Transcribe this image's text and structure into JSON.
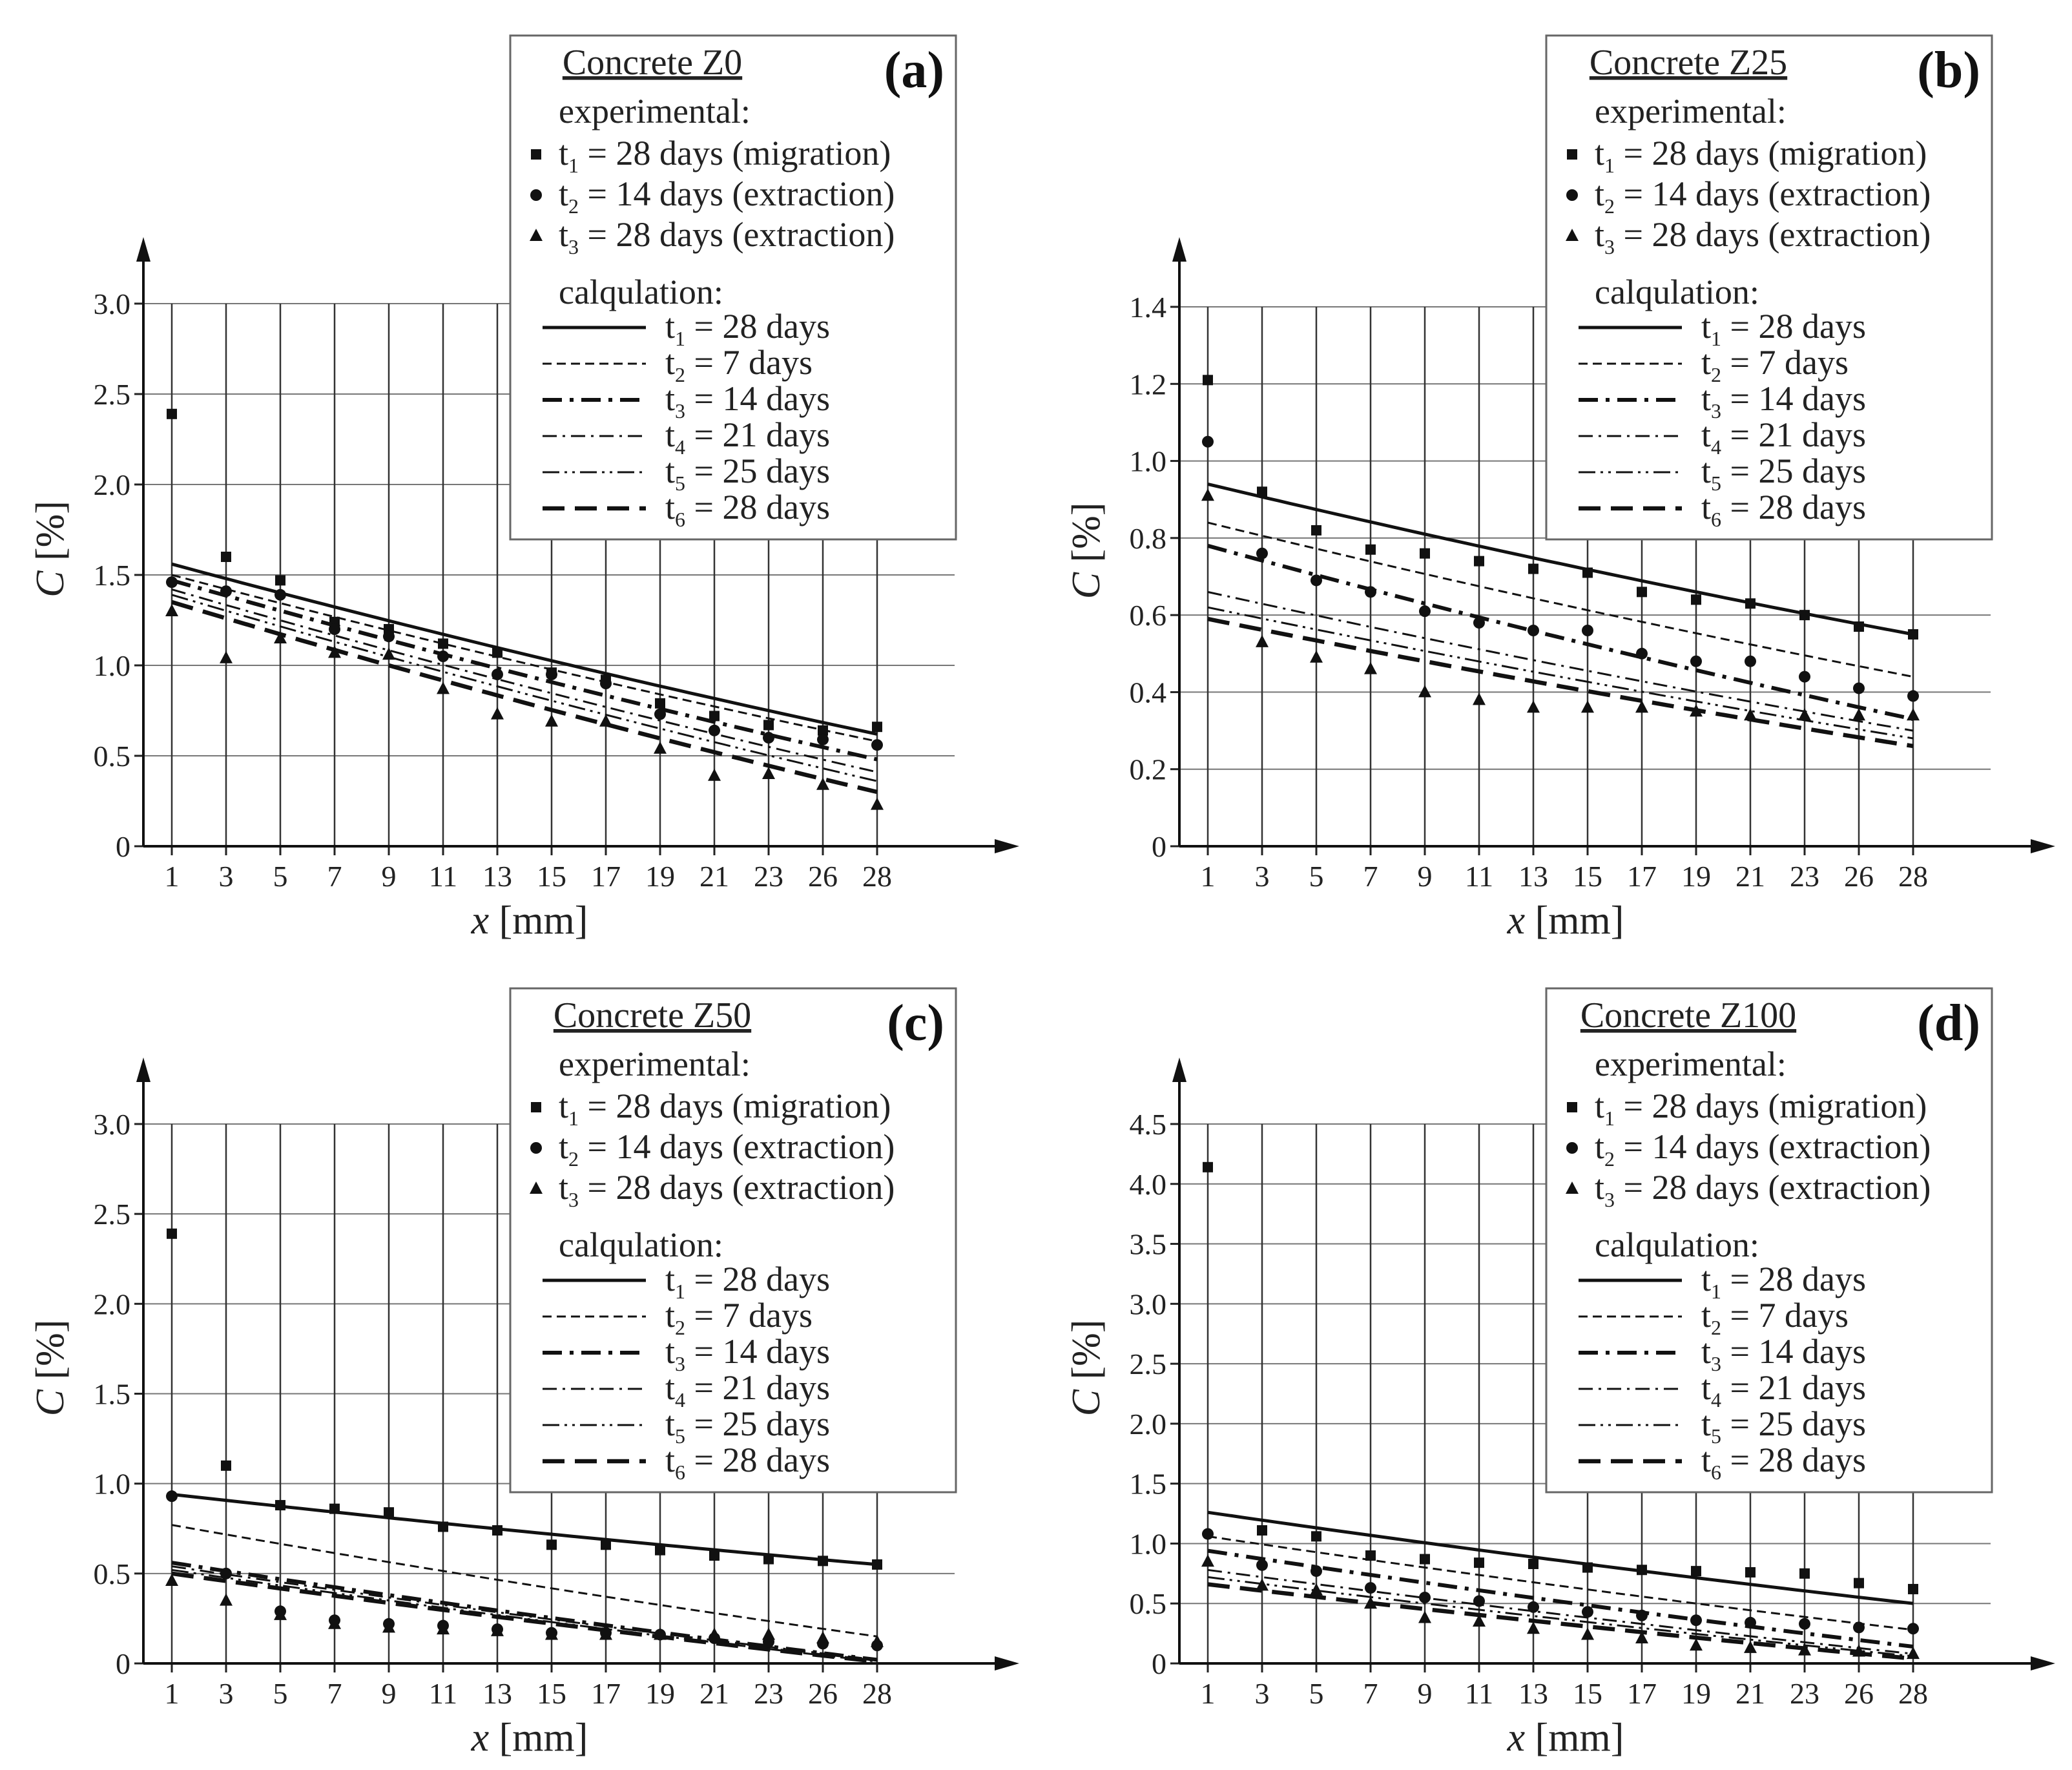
{
  "figure": {
    "legend_text": {
      "experimental": "experimental:",
      "calculation": "calqulation:",
      "exp_series": [
        {
          "sub": "1",
          "label": "= 28 days (migration)"
        },
        {
          "sub": "2",
          "label": "= 14 days (extraction)"
        },
        {
          "sub": "3",
          "label": "= 28 days (extraction)"
        }
      ],
      "calc_series": [
        {
          "sub": "1",
          "label": "= 28 days"
        },
        {
          "sub": "2",
          "label": "= 7 days"
        },
        {
          "sub": "3",
          "label": "= 14 days"
        },
        {
          "sub": "4",
          "label": "= 21 days"
        },
        {
          "sub": "5",
          "label": "= 25 days"
        },
        {
          "sub": "6",
          "label": "= 28 days"
        }
      ]
    }
  },
  "chart_data": [
    {
      "type": "scatter",
      "panel_label": "(a)",
      "legend_title": "Concrete Z0",
      "xlabel": "x [mm]",
      "ylabel": "C [%]",
      "x": [
        1,
        3,
        5,
        7,
        9,
        11,
        13,
        15,
        17,
        19,
        21,
        23,
        26,
        28
      ],
      "x_ticks": [
        "1",
        "3",
        "5",
        "7",
        "9",
        "11",
        "13",
        "15",
        "17",
        "19",
        "21",
        "23",
        "26",
        "28"
      ],
      "y_ticks": [
        "0",
        "0.5",
        "1.0",
        "1.5",
        "2.0",
        "2.5",
        "3.0"
      ],
      "ylim": [
        0,
        3.0
      ],
      "grid": true,
      "experimental": [
        {
          "name": "t1 = 28 days (migration)",
          "marker": "square",
          "values": [
            2.39,
            1.6,
            1.47,
            1.24,
            1.2,
            1.12,
            1.07,
            0.96,
            0.92,
            0.79,
            0.72,
            0.67,
            0.64,
            0.66
          ]
        },
        {
          "name": "t2 = 14 days (extraction)",
          "marker": "circle",
          "values": [
            1.46,
            1.41,
            1.39,
            1.2,
            1.16,
            1.05,
            0.95,
            0.95,
            0.9,
            0.73,
            0.64,
            0.6,
            0.59,
            0.56
          ]
        },
        {
          "name": "t3 = 28 days (extraction)",
          "marker": "triangle",
          "values": [
            1.3,
            1.04,
            1.15,
            1.07,
            1.06,
            0.87,
            0.73,
            0.69,
            0.69,
            0.54,
            0.39,
            0.4,
            0.34,
            0.23
          ]
        }
      ],
      "calculation": [
        {
          "name": "t1 = 28 days",
          "style": "solid",
          "from": 1.56,
          "to": 0.62
        },
        {
          "name": "t2 = 7 days",
          "style": "dash-fine",
          "from": 1.5,
          "to": 0.58
        },
        {
          "name": "t3 = 14 days",
          "style": "dashdot-bold",
          "from": 1.47,
          "to": 0.48
        },
        {
          "name": "t4 = 21 days",
          "style": "dashdot",
          "from": 1.42,
          "to": 0.41
        },
        {
          "name": "t5 = 25 days",
          "style": "dashdotdot",
          "from": 1.39,
          "to": 0.36
        },
        {
          "name": "t6 = 28 days",
          "style": "dash-long",
          "from": 1.35,
          "to": 0.3
        }
      ]
    },
    {
      "type": "scatter",
      "panel_label": "(b)",
      "legend_title": "Concrete Z25",
      "xlabel": "x [mm]",
      "ylabel": "C [%]",
      "x": [
        1,
        3,
        5,
        7,
        9,
        11,
        13,
        15,
        17,
        19,
        21,
        23,
        26,
        28
      ],
      "x_ticks": [
        "1",
        "3",
        "5",
        "7",
        "9",
        "11",
        "13",
        "15",
        "17",
        "19",
        "21",
        "23",
        "26",
        "28"
      ],
      "y_ticks": [
        "0",
        "0.2",
        "0.4",
        "0.6",
        "0.8",
        "1.0",
        "1.2",
        "1.4"
      ],
      "ylim": [
        0,
        1.4
      ],
      "grid": true,
      "experimental": [
        {
          "name": "t1 = 28 days (migration)",
          "marker": "square",
          "values": [
            1.21,
            0.92,
            0.82,
            0.77,
            0.76,
            0.74,
            0.72,
            0.71,
            0.66,
            0.64,
            0.63,
            0.6,
            0.57,
            0.55
          ]
        },
        {
          "name": "t2 = 14 days (extraction)",
          "marker": "circle",
          "values": [
            1.05,
            0.76,
            0.69,
            0.66,
            0.61,
            0.58,
            0.56,
            0.56,
            0.5,
            0.48,
            0.48,
            0.44,
            0.41,
            0.39
          ]
        },
        {
          "name": "t3 = 28 days (extraction)",
          "marker": "triangle",
          "values": [
            0.91,
            0.53,
            0.49,
            0.46,
            0.4,
            0.38,
            0.36,
            0.36,
            0.36,
            0.35,
            0.34,
            0.34,
            0.34,
            0.34
          ]
        }
      ],
      "calculation": [
        {
          "name": "t1 = 28 days",
          "style": "solid",
          "from": 0.94,
          "to": 0.55
        },
        {
          "name": "t2 = 7 days",
          "style": "dash-fine",
          "from": 0.84,
          "to": 0.44
        },
        {
          "name": "t3 = 14 days",
          "style": "dashdot-bold",
          "from": 0.78,
          "to": 0.33
        },
        {
          "name": "t4 = 21 days",
          "style": "dashdot",
          "from": 0.66,
          "to": 0.3
        },
        {
          "name": "t5 = 25 days",
          "style": "dashdotdot",
          "from": 0.62,
          "to": 0.28
        },
        {
          "name": "t6 = 28 days",
          "style": "dash-long",
          "from": 0.59,
          "to": 0.26
        }
      ]
    },
    {
      "type": "scatter",
      "panel_label": "(c)",
      "legend_title": "Concrete Z50",
      "xlabel": "x [mm]",
      "ylabel": "C [%]",
      "x": [
        1,
        3,
        5,
        7,
        9,
        11,
        13,
        15,
        17,
        19,
        21,
        23,
        26,
        28
      ],
      "x_ticks": [
        "1",
        "3",
        "5",
        "7",
        "9",
        "11",
        "13",
        "15",
        "17",
        "19",
        "21",
        "23",
        "26",
        "28"
      ],
      "y_ticks": [
        "0",
        "0.5",
        "1.0",
        "1.5",
        "2.0",
        "2.5",
        "3.0"
      ],
      "ylim": [
        0,
        3.0
      ],
      "grid": true,
      "experimental": [
        {
          "name": "t1 = 28 days (migration)",
          "marker": "square",
          "values": [
            2.39,
            1.1,
            0.88,
            0.86,
            0.84,
            0.76,
            0.74,
            0.66,
            0.66,
            0.63,
            0.6,
            0.58,
            0.57,
            0.55
          ]
        },
        {
          "name": "t2 = 14 days (extraction)",
          "marker": "circle",
          "values": [
            0.93,
            0.5,
            0.29,
            0.24,
            0.22,
            0.21,
            0.19,
            0.17,
            0.17,
            0.16,
            0.14,
            0.12,
            0.11,
            0.1
          ]
        },
        {
          "name": "t3 = 28 days (extraction)",
          "marker": "triangle",
          "values": [
            0.46,
            0.35,
            0.27,
            0.22,
            0.2,
            0.19,
            0.18,
            0.16,
            0.16,
            0.16,
            0.16,
            0.16,
            0.14,
            0.12
          ]
        }
      ],
      "calculation": [
        {
          "name": "t1 = 28 days",
          "style": "solid",
          "from": 0.94,
          "to": 0.55
        },
        {
          "name": "t2 = 7 days",
          "style": "dash-fine",
          "from": 0.77,
          "to": 0.15
        },
        {
          "name": "t3 = 14 days",
          "style": "dashdot-bold",
          "from": 0.56,
          "to": 0.02
        },
        {
          "name": "t4 = 21 days",
          "style": "dashdot",
          "from": 0.54,
          "to": 0.02
        },
        {
          "name": "t5 = 25 days",
          "style": "dashdotdot",
          "from": 0.52,
          "to": 0.01
        },
        {
          "name": "t6 = 28 days",
          "style": "dash-long",
          "from": 0.5,
          "to": 0.01
        }
      ]
    },
    {
      "type": "scatter",
      "panel_label": "(d)",
      "legend_title": "Concrete Z100",
      "xlabel": "x [mm]",
      "ylabel": "C [%]",
      "x": [
        1,
        3,
        5,
        7,
        9,
        11,
        13,
        15,
        17,
        19,
        21,
        23,
        26,
        28
      ],
      "x_ticks": [
        "1",
        "3",
        "5",
        "7",
        "9",
        "11",
        "13",
        "15",
        "17",
        "19",
        "21",
        "23",
        "26",
        "28"
      ],
      "y_ticks": [
        "0",
        "0.5",
        "1.0",
        "1.5",
        "2.0",
        "2.5",
        "3.0",
        "3.5",
        "4.0",
        "4.5"
      ],
      "ylim": [
        0,
        4.5
      ],
      "grid": true,
      "experimental": [
        {
          "name": "t1 = 28 days (migration)",
          "marker": "square",
          "values": [
            4.14,
            1.11,
            1.06,
            0.9,
            0.87,
            0.84,
            0.83,
            0.8,
            0.78,
            0.77,
            0.76,
            0.75,
            0.67,
            0.62
          ]
        },
        {
          "name": "t2 = 14 days (extraction)",
          "marker": "circle",
          "values": [
            1.08,
            0.82,
            0.77,
            0.63,
            0.55,
            0.52,
            0.47,
            0.43,
            0.4,
            0.36,
            0.34,
            0.33,
            0.3,
            0.29
          ]
        },
        {
          "name": "t3 = 28 days (extraction)",
          "marker": "triangle",
          "values": [
            0.85,
            0.65,
            0.61,
            0.5,
            0.38,
            0.35,
            0.29,
            0.24,
            0.21,
            0.15,
            0.13,
            0.11,
            0.1,
            0.08
          ]
        }
      ],
      "calculation": [
        {
          "name": "t1 = 28 days",
          "style": "solid",
          "from": 1.26,
          "to": 0.5
        },
        {
          "name": "t2 = 7 days",
          "style": "dash-fine",
          "from": 1.06,
          "to": 0.28
        },
        {
          "name": "t3 = 14 days",
          "style": "dashdot-bold",
          "from": 0.94,
          "to": 0.14
        },
        {
          "name": "t4 = 21 days",
          "style": "dashdot",
          "from": 0.78,
          "to": 0.08
        },
        {
          "name": "t5 = 25 days",
          "style": "dashdotdot",
          "from": 0.72,
          "to": 0.06
        },
        {
          "name": "t6 = 28 days",
          "style": "dash-long",
          "from": 0.66,
          "to": 0.04
        }
      ]
    }
  ]
}
